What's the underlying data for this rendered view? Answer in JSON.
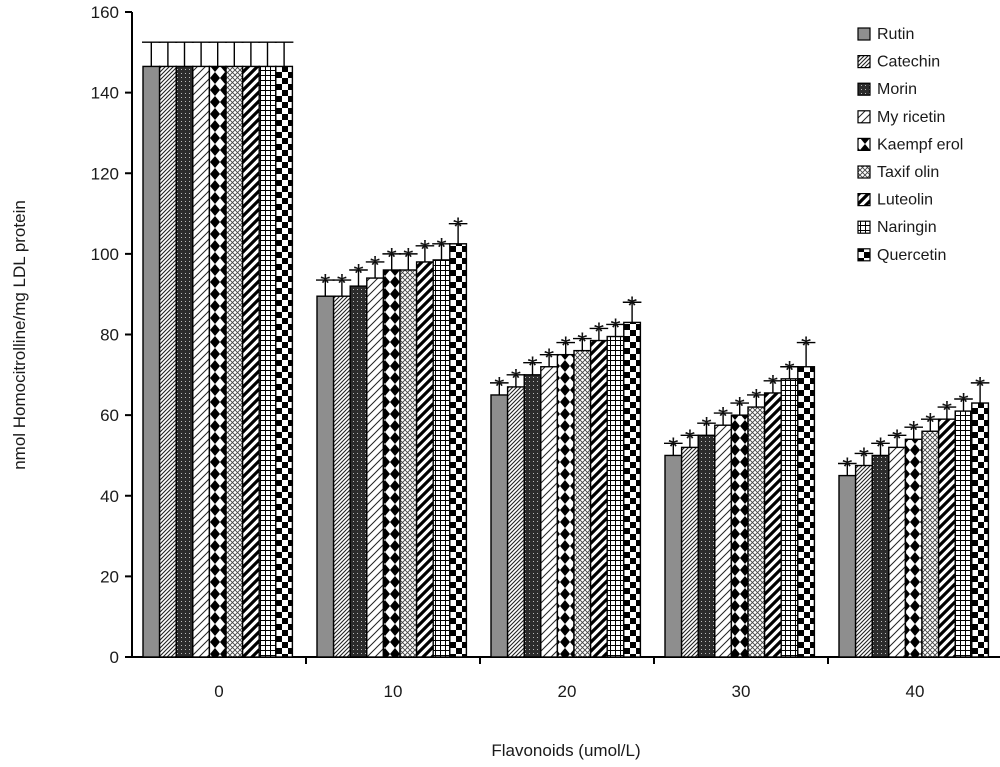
{
  "chart_data": {
    "type": "bar",
    "xlabel": "Flavonoids (umol/L)",
    "ylabel": "nmol Homocitrolline/mg LDL protein",
    "ylim": [
      0,
      160
    ],
    "yticks": [
      0,
      20,
      40,
      60,
      80,
      100,
      120,
      140,
      160
    ],
    "categories": [
      "0",
      "10",
      "20",
      "30",
      "40"
    ],
    "legend": "top-right",
    "grid": false,
    "significance_marker": "*",
    "significant_categories": [
      "10",
      "20",
      "30",
      "40"
    ],
    "series": [
      {
        "name": "Rutin",
        "pattern": "solid-gray",
        "values": [
          146.5,
          89.5,
          65,
          50,
          45
        ],
        "errors": [
          6,
          4,
          3,
          3,
          3
        ]
      },
      {
        "name": "Catechin",
        "pattern": "diag-dense",
        "values": [
          146.5,
          89.5,
          67,
          52,
          47.5
        ],
        "errors": [
          6,
          4,
          3,
          3,
          3
        ]
      },
      {
        "name": "Morin",
        "pattern": "dark-dots",
        "values": [
          146.5,
          92,
          70,
          55,
          50
        ],
        "errors": [
          6,
          4,
          3,
          3,
          3
        ]
      },
      {
        "name": "My ricetin",
        "pattern": "diag-sparse",
        "values": [
          146.5,
          94,
          72,
          57.5,
          52
        ],
        "errors": [
          6,
          4,
          3,
          3,
          3
        ]
      },
      {
        "name": "Kaempf erol",
        "pattern": "diamonds",
        "values": [
          146.5,
          96,
          75,
          60,
          54
        ],
        "errors": [
          6,
          4,
          3,
          3,
          3
        ]
      },
      {
        "name": "Taxif olin",
        "pattern": "crosshatch",
        "values": [
          146.5,
          96,
          76,
          62,
          56
        ],
        "errors": [
          6,
          4,
          3,
          3,
          3
        ]
      },
      {
        "name": "Luteolin",
        "pattern": "diag-thick",
        "values": [
          146.5,
          98,
          78.5,
          65.5,
          59
        ],
        "errors": [
          6,
          4,
          3,
          3,
          3
        ]
      },
      {
        "name": "Naringin",
        "pattern": "grid",
        "values": [
          146.5,
          98.5,
          79.5,
          69,
          61
        ],
        "errors": [
          6,
          4,
          3,
          3,
          3
        ]
      },
      {
        "name": "Quercetin",
        "pattern": "checker",
        "values": [
          146.5,
          102.5,
          83,
          72,
          63
        ],
        "errors": [
          6,
          5,
          5,
          6,
          5
        ]
      }
    ]
  }
}
